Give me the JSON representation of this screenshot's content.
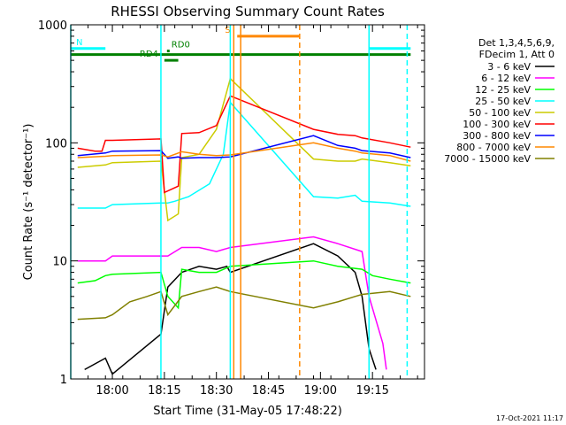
{
  "chart_data": {
    "type": "line",
    "title": "RHESSI Observing Summary Count Rates",
    "xlabel": "Start Time (31-May-05 17:48:22)",
    "ylabel": "Count Rate (s⁻¹ detector⁻¹)",
    "y_scale": "log",
    "ylim": [
      1,
      1000
    ],
    "xlim": [
      "17:48",
      "19:30"
    ],
    "x_ticks": [
      "18:00",
      "18:15",
      "18:30",
      "18:45",
      "19:00",
      "19:15"
    ],
    "y_ticks": [
      "1",
      "10",
      "100",
      "1000"
    ],
    "footer_date": "17-Oct-2021 11:17",
    "legend": {
      "header1": "Det 1,3,4,5,6,9,",
      "header2": "FDecim 1, Att 0",
      "placement": "right-outside"
    },
    "series": [
      {
        "name": "3 - 6 keV",
        "color": "#000000",
        "points": [
          [
            "17:52",
            1.2
          ],
          [
            "17:58",
            1.5
          ],
          [
            "18:00",
            1.1
          ],
          [
            "18:14",
            2.4
          ],
          [
            "18:16",
            6
          ],
          [
            "18:20",
            8
          ],
          [
            "18:25",
            9
          ],
          [
            "18:30",
            8.5
          ],
          [
            "18:33",
            9
          ],
          [
            "18:34",
            8
          ],
          [
            "18:58",
            14
          ],
          [
            "19:05",
            11
          ],
          [
            "19:10",
            8
          ],
          [
            "19:12",
            5
          ],
          [
            "19:14",
            1.8
          ],
          [
            "19:16",
            1.2
          ]
        ]
      },
      {
        "name": "6 - 12 keV",
        "color": "#ff00ff",
        "points": [
          [
            "17:50",
            10
          ],
          [
            "17:58",
            10
          ],
          [
            "18:00",
            11
          ],
          [
            "18:14",
            11
          ],
          [
            "18:16",
            11
          ],
          [
            "18:20",
            13
          ],
          [
            "18:25",
            13
          ],
          [
            "18:30",
            12
          ],
          [
            "18:34",
            13
          ],
          [
            "18:58",
            16
          ],
          [
            "19:05",
            14
          ],
          [
            "19:12",
            12
          ],
          [
            "19:14",
            5
          ],
          [
            "19:18",
            2
          ],
          [
            "19:19",
            1.2
          ]
        ]
      },
      {
        "name": "12 - 25 keV",
        "color": "#00ff00",
        "points": [
          [
            "17:50",
            6.5
          ],
          [
            "17:55",
            6.8
          ],
          [
            "17:58",
            7.5
          ],
          [
            "18:00",
            7.7
          ],
          [
            "18:14",
            8
          ],
          [
            "18:16",
            5
          ],
          [
            "18:19",
            4
          ],
          [
            "18:20",
            8.5
          ],
          [
            "18:25",
            8
          ],
          [
            "18:30",
            8
          ],
          [
            "18:34",
            9
          ],
          [
            "18:58",
            10
          ],
          [
            "19:05",
            9
          ],
          [
            "19:12",
            8.5
          ],
          [
            "19:15",
            7.5
          ],
          [
            "19:20",
            7
          ],
          [
            "19:26",
            6.5
          ]
        ]
      },
      {
        "name": "25 - 50 keV",
        "color": "#00ffff",
        "points": [
          [
            "17:50",
            28
          ],
          [
            "17:58",
            28
          ],
          [
            "18:00",
            30
          ],
          [
            "18:14",
            31
          ],
          [
            "18:16",
            31
          ],
          [
            "18:18",
            32
          ],
          [
            "18:22",
            35
          ],
          [
            "18:28",
            45
          ],
          [
            "18:32",
            80
          ],
          [
            "18:34",
            220
          ],
          [
            "18:58",
            35
          ],
          [
            "19:05",
            34
          ],
          [
            "19:10",
            36
          ],
          [
            "19:12",
            32
          ],
          [
            "19:20",
            31
          ],
          [
            "19:26",
            29
          ]
        ]
      },
      {
        "name": "50 - 100 keV",
        "color": "#cccc00",
        "points": [
          [
            "17:50",
            62
          ],
          [
            "17:58",
            65
          ],
          [
            "18:00",
            68
          ],
          [
            "18:14",
            70
          ],
          [
            "18:16",
            22
          ],
          [
            "18:19",
            25
          ],
          [
            "18:20",
            75
          ],
          [
            "18:25",
            80
          ],
          [
            "18:30",
            130
          ],
          [
            "18:34",
            350
          ],
          [
            "18:58",
            73
          ],
          [
            "19:05",
            70
          ],
          [
            "19:10",
            70
          ],
          [
            "19:12",
            73
          ],
          [
            "19:20",
            68
          ],
          [
            "19:26",
            64
          ]
        ]
      },
      {
        "name": "100 - 300 keV",
        "color": "#ff0000",
        "points": [
          [
            "17:50",
            90
          ],
          [
            "17:55",
            85
          ],
          [
            "17:57",
            85
          ],
          [
            "17:58",
            105
          ],
          [
            "18:00",
            105
          ],
          [
            "18:14",
            108
          ],
          [
            "18:15",
            38
          ],
          [
            "18:19",
            43
          ],
          [
            "18:20",
            120
          ],
          [
            "18:25",
            122
          ],
          [
            "18:30",
            140
          ],
          [
            "18:34",
            250
          ],
          [
            "18:58",
            130
          ],
          [
            "19:05",
            118
          ],
          [
            "19:10",
            115
          ],
          [
            "19:12",
            110
          ],
          [
            "19:20",
            100
          ],
          [
            "19:26",
            92
          ]
        ]
      },
      {
        "name": "300 - 800 keV",
        "color": "#0000ff",
        "points": [
          [
            "17:50",
            78
          ],
          [
            "17:58",
            82
          ],
          [
            "18:00",
            85
          ],
          [
            "18:14",
            86
          ],
          [
            "18:16",
            74
          ],
          [
            "18:19",
            76
          ],
          [
            "18:20",
            74
          ],
          [
            "18:25",
            75
          ],
          [
            "18:30",
            75
          ],
          [
            "18:34",
            76
          ],
          [
            "18:58",
            115
          ],
          [
            "19:05",
            95
          ],
          [
            "19:10",
            90
          ],
          [
            "19:12",
            86
          ],
          [
            "19:20",
            82
          ],
          [
            "19:26",
            75
          ]
        ]
      },
      {
        "name": "800 - 7000 keV",
        "color": "#ff8800",
        "points": [
          [
            "17:50",
            75
          ],
          [
            "17:58",
            77
          ],
          [
            "18:00",
            78
          ],
          [
            "18:14",
            79
          ],
          [
            "18:16",
            76
          ],
          [
            "18:20",
            84
          ],
          [
            "18:25",
            80
          ],
          [
            "18:30",
            78
          ],
          [
            "18:34",
            79
          ],
          [
            "18:58",
            100
          ],
          [
            "19:05",
            90
          ],
          [
            "19:10",
            85
          ],
          [
            "19:12",
            82
          ],
          [
            "19:20",
            78
          ],
          [
            "19:26",
            70
          ]
        ]
      },
      {
        "name": "7000 - 15000 keV",
        "color": "#808000",
        "points": [
          [
            "17:50",
            3.2
          ],
          [
            "17:58",
            3.3
          ],
          [
            "18:00",
            3.5
          ],
          [
            "18:05",
            4.5
          ],
          [
            "18:10",
            5
          ],
          [
            "18:14",
            5.5
          ],
          [
            "18:16",
            3.5
          ],
          [
            "18:20",
            5
          ],
          [
            "18:25",
            5.5
          ],
          [
            "18:30",
            6
          ],
          [
            "18:34",
            5.5
          ],
          [
            "18:58",
            4
          ],
          [
            "19:05",
            4.5
          ],
          [
            "19:10",
            5
          ],
          [
            "19:12",
            5.2
          ],
          [
            "19:20",
            5.5
          ],
          [
            "19:26",
            5
          ]
        ]
      }
    ],
    "state_bars": [
      {
        "label": "N",
        "color": "#00ffff",
        "x_ranges": [
          [
            "17:48",
            "17:58"
          ],
          [
            "19:14",
            "19:26"
          ]
        ],
        "y": 630
      },
      {
        "label": "",
        "color": "#008000",
        "x_ranges": [
          [
            "17:48",
            "19:26"
          ]
        ],
        "y": 560
      },
      {
        "label": "RD0",
        "color": "#008000",
        "x_ranges": [
          [
            "18:16",
            "18:16"
          ]
        ],
        "y": 600
      },
      {
        "label": "RD4",
        "color": "#008000",
        "x_ranges": [
          [
            "18:15",
            "18:19"
          ]
        ],
        "y": 500
      },
      {
        "label": "S",
        "color": "#ff8800",
        "x_ranges": [
          [
            "18:36",
            "18:54"
          ]
        ],
        "y": 800
      }
    ],
    "vertical_markers": [
      {
        "x": "17:48",
        "color": "#00ffff",
        "style": "solid"
      },
      {
        "x": "18:14",
        "color": "#00ffff",
        "style": "solid"
      },
      {
        "x": "18:34",
        "color": "#00ffff",
        "style": "solid"
      },
      {
        "x": "19:14",
        "color": "#00ffff",
        "style": "solid"
      },
      {
        "x": "19:25",
        "color": "#00ffff",
        "style": "dashed"
      },
      {
        "x": "18:35",
        "color": "#ff8800",
        "style": "solid"
      },
      {
        "x": "18:37",
        "color": "#ff8800",
        "style": "solid"
      },
      {
        "x": "18:54",
        "color": "#ff8800",
        "style": "dashed"
      }
    ]
  }
}
